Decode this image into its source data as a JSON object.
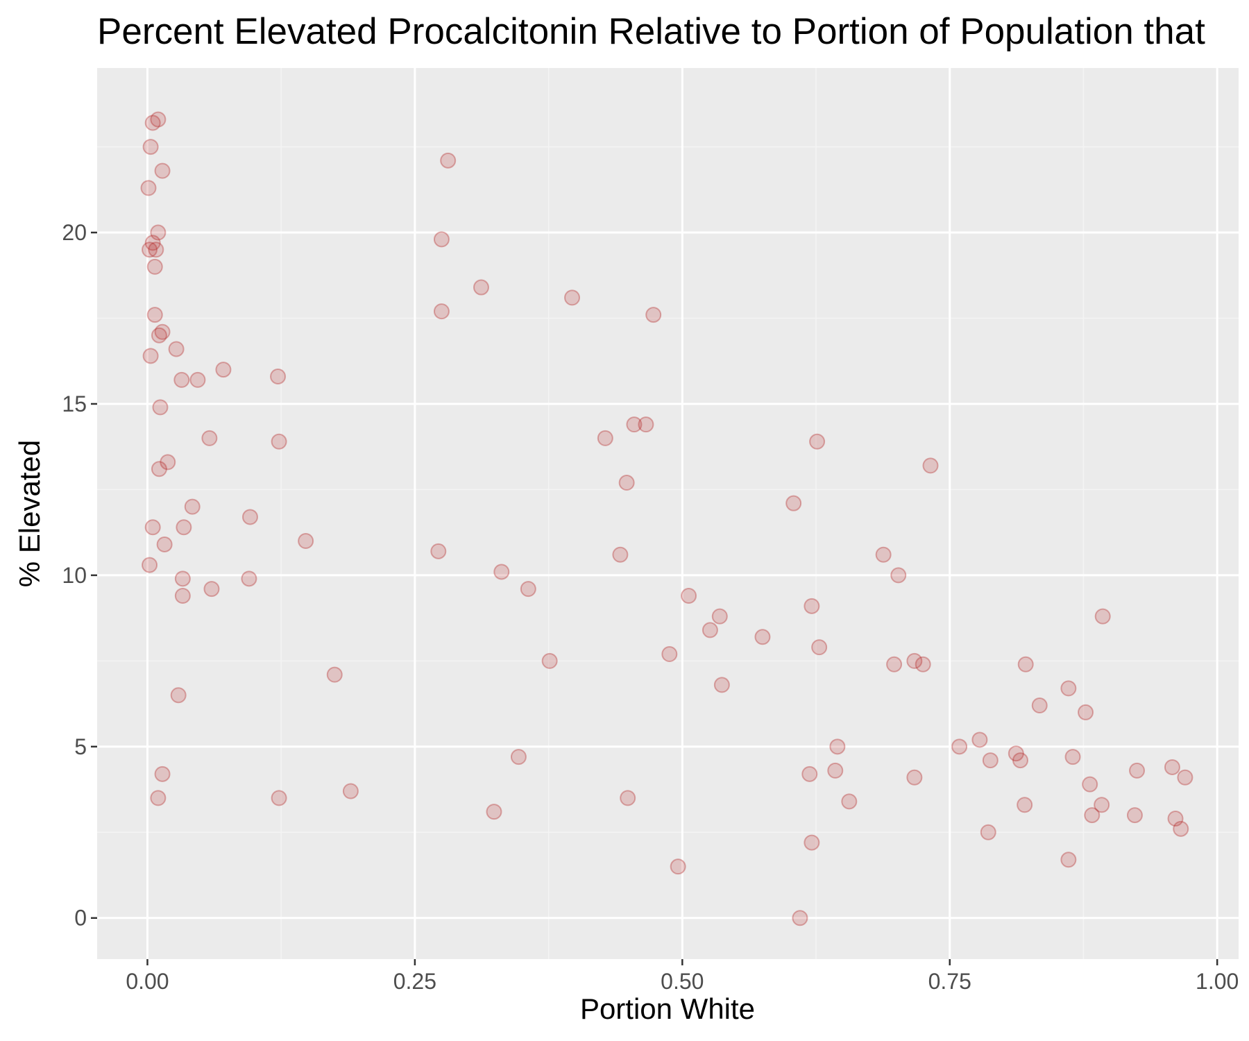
{
  "chart_data": {
    "type": "scatter",
    "title": "Percent Elevated Procalcitonin Relative to Portion of Population that",
    "xlabel": "Portion White",
    "ylabel": "% Elevated",
    "xlim": [
      -0.047,
      1.02
    ],
    "ylim": [
      -1.2,
      24.8
    ],
    "x_ticks": [
      0.0,
      0.25,
      0.5,
      0.75,
      1.0
    ],
    "x_tick_labels": [
      "0.00",
      "0.25",
      "0.50",
      "0.75",
      "1.00"
    ],
    "y_ticks": [
      0,
      5,
      10,
      15,
      20
    ],
    "y_tick_labels": [
      "0",
      "5",
      "10",
      "15",
      "20"
    ],
    "grid": true,
    "legend": "none",
    "colors": {
      "panel_background": "#ebebeb",
      "grid_major": "#ffffff",
      "grid_minor": "#f4f4f4",
      "point_fill": "#b22222",
      "point_fill_opacity": 0.2,
      "point_stroke": "#b22222",
      "point_stroke_opacity": 0.35
    },
    "points": [
      {
        "x": 0.001,
        "y": 21.3
      },
      {
        "x": 0.003,
        "y": 22.5
      },
      {
        "x": 0.005,
        "y": 23.2
      },
      {
        "x": 0.01,
        "y": 23.3
      },
      {
        "x": 0.014,
        "y": 21.8
      },
      {
        "x": 0.01,
        "y": 20.0
      },
      {
        "x": 0.005,
        "y": 19.7
      },
      {
        "x": 0.002,
        "y": 19.5
      },
      {
        "x": 0.008,
        "y": 19.5
      },
      {
        "x": 0.007,
        "y": 19.0
      },
      {
        "x": 0.007,
        "y": 17.6
      },
      {
        "x": 0.014,
        "y": 17.1
      },
      {
        "x": 0.011,
        "y": 17.0
      },
      {
        "x": 0.003,
        "y": 16.4
      },
      {
        "x": 0.027,
        "y": 16.6
      },
      {
        "x": 0.032,
        "y": 15.7
      },
      {
        "x": 0.047,
        "y": 15.7
      },
      {
        "x": 0.071,
        "y": 16.0
      },
      {
        "x": 0.012,
        "y": 14.9
      },
      {
        "x": 0.058,
        "y": 14.0
      },
      {
        "x": 0.019,
        "y": 13.3
      },
      {
        "x": 0.011,
        "y": 13.1
      },
      {
        "x": 0.042,
        "y": 12.0
      },
      {
        "x": 0.034,
        "y": 11.4
      },
      {
        "x": 0.005,
        "y": 11.4
      },
      {
        "x": 0.016,
        "y": 10.9
      },
      {
        "x": 0.002,
        "y": 10.3
      },
      {
        "x": 0.033,
        "y": 9.9
      },
      {
        "x": 0.033,
        "y": 9.4
      },
      {
        "x": 0.06,
        "y": 9.6
      },
      {
        "x": 0.029,
        "y": 6.5
      },
      {
        "x": 0.014,
        "y": 4.2
      },
      {
        "x": 0.01,
        "y": 3.5
      },
      {
        "x": 0.122,
        "y": 15.8
      },
      {
        "x": 0.123,
        "y": 13.9
      },
      {
        "x": 0.096,
        "y": 11.7
      },
      {
        "x": 0.095,
        "y": 9.9
      },
      {
        "x": 0.148,
        "y": 11.0
      },
      {
        "x": 0.175,
        "y": 7.1
      },
      {
        "x": 0.123,
        "y": 3.5
      },
      {
        "x": 0.19,
        "y": 3.7
      },
      {
        "x": 0.281,
        "y": 22.1
      },
      {
        "x": 0.275,
        "y": 19.8
      },
      {
        "x": 0.275,
        "y": 17.7
      },
      {
        "x": 0.312,
        "y": 18.4
      },
      {
        "x": 0.397,
        "y": 18.1
      },
      {
        "x": 0.473,
        "y": 17.6
      },
      {
        "x": 0.272,
        "y": 10.7
      },
      {
        "x": 0.331,
        "y": 10.1
      },
      {
        "x": 0.356,
        "y": 9.6
      },
      {
        "x": 0.376,
        "y": 7.5
      },
      {
        "x": 0.347,
        "y": 4.7
      },
      {
        "x": 0.324,
        "y": 3.1
      },
      {
        "x": 0.428,
        "y": 14.0
      },
      {
        "x": 0.455,
        "y": 14.4
      },
      {
        "x": 0.466,
        "y": 14.4
      },
      {
        "x": 0.448,
        "y": 12.7
      },
      {
        "x": 0.442,
        "y": 10.6
      },
      {
        "x": 0.449,
        "y": 3.5
      },
      {
        "x": 0.506,
        "y": 9.4
      },
      {
        "x": 0.488,
        "y": 7.7
      },
      {
        "x": 0.496,
        "y": 1.5
      },
      {
        "x": 0.526,
        "y": 8.4
      },
      {
        "x": 0.535,
        "y": 8.8
      },
      {
        "x": 0.537,
        "y": 6.8
      },
      {
        "x": 0.575,
        "y": 8.2
      },
      {
        "x": 0.604,
        "y": 12.1
      },
      {
        "x": 0.626,
        "y": 13.9
      },
      {
        "x": 0.621,
        "y": 9.1
      },
      {
        "x": 0.628,
        "y": 7.9
      },
      {
        "x": 0.619,
        "y": 4.2
      },
      {
        "x": 0.621,
        "y": 2.2
      },
      {
        "x": 0.61,
        "y": 0.0
      },
      {
        "x": 0.645,
        "y": 5.0
      },
      {
        "x": 0.643,
        "y": 4.3
      },
      {
        "x": 0.656,
        "y": 3.4
      },
      {
        "x": 0.688,
        "y": 10.6
      },
      {
        "x": 0.702,
        "y": 10.0
      },
      {
        "x": 0.698,
        "y": 7.4
      },
      {
        "x": 0.717,
        "y": 7.5
      },
      {
        "x": 0.725,
        "y": 7.4
      },
      {
        "x": 0.732,
        "y": 13.2
      },
      {
        "x": 0.717,
        "y": 4.1
      },
      {
        "x": 0.759,
        "y": 5.0
      },
      {
        "x": 0.778,
        "y": 5.2
      },
      {
        "x": 0.788,
        "y": 4.6
      },
      {
        "x": 0.786,
        "y": 2.5
      },
      {
        "x": 0.812,
        "y": 4.8
      },
      {
        "x": 0.816,
        "y": 4.6
      },
      {
        "x": 0.821,
        "y": 7.4
      },
      {
        "x": 0.82,
        "y": 3.3
      },
      {
        "x": 0.834,
        "y": 6.2
      },
      {
        "x": 0.861,
        "y": 6.7
      },
      {
        "x": 0.865,
        "y": 4.7
      },
      {
        "x": 0.861,
        "y": 1.7
      },
      {
        "x": 0.877,
        "y": 6.0
      },
      {
        "x": 0.893,
        "y": 8.8
      },
      {
        "x": 0.881,
        "y": 3.9
      },
      {
        "x": 0.892,
        "y": 3.3
      },
      {
        "x": 0.883,
        "y": 3.0
      },
      {
        "x": 0.925,
        "y": 4.3
      },
      {
        "x": 0.923,
        "y": 3.0
      },
      {
        "x": 0.958,
        "y": 4.4
      },
      {
        "x": 0.97,
        "y": 4.1
      },
      {
        "x": 0.961,
        "y": 2.9
      },
      {
        "x": 0.966,
        "y": 2.6
      }
    ]
  }
}
